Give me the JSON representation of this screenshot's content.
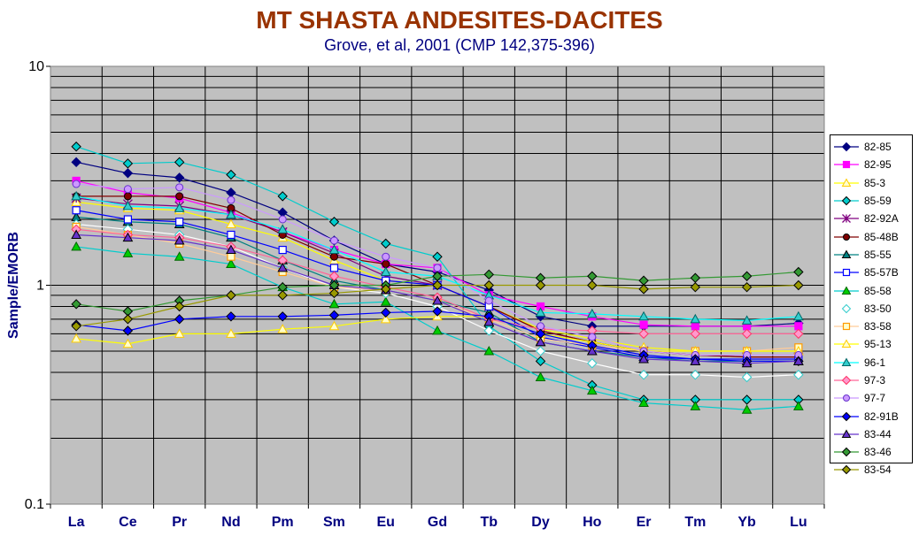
{
  "chart_data": {
    "type": "line",
    "title": "MT SHASTA ANDESITES-DACITES",
    "subtitle": "Grove, et al, 2001 (CMP 142,375-396)",
    "ylabel": "Sample/EMORB",
    "xlabel": "",
    "yscale": "log",
    "ylim": [
      0.1,
      10
    ],
    "ytick_labels": [
      "0.1",
      "1",
      "10"
    ],
    "grid": true,
    "legend_position": "right",
    "plot_background": "#c0c0c0",
    "categories": [
      "La",
      "Ce",
      "Pr",
      "Nd",
      "Pm",
      "Sm",
      "Eu",
      "Gd",
      "Tb",
      "Dy",
      "Ho",
      "Er",
      "Tm",
      "Yb",
      "Lu"
    ],
    "series": [
      {
        "name": "82-85",
        "color": "#000080",
        "marker": "diamond",
        "values": [
          3.65,
          3.25,
          3.1,
          2.65,
          2.15,
          1.6,
          1.25,
          1.15,
          0.95,
          0.72,
          0.65,
          0.65,
          0.65,
          0.65,
          0.67
        ]
      },
      {
        "name": "82-95",
        "color": "#ff00ff",
        "marker": "square",
        "values": [
          3.0,
          2.65,
          2.5,
          2.15,
          1.75,
          1.45,
          1.25,
          1.2,
          0.9,
          0.8,
          0.72,
          0.66,
          0.65,
          0.65,
          0.65
        ]
      },
      {
        "name": "85-3",
        "color": "#ffff00",
        "marker": "triangle-open",
        "values": [
          2.4,
          2.25,
          2.2,
          1.9,
          1.65,
          1.3,
          1.05,
          1.0,
          0.8,
          0.63,
          0.57,
          0.52,
          0.5,
          0.5,
          0.5
        ]
      },
      {
        "name": "85-59",
        "color": "#00cccc",
        "marker": "diamond",
        "values": [
          4.3,
          3.6,
          3.65,
          3.2,
          2.55,
          1.95,
          1.55,
          1.35,
          0.65,
          0.45,
          0.35,
          0.3,
          0.3,
          0.3,
          0.3
        ]
      },
      {
        "name": "82-92A",
        "color": "#800080",
        "marker": "star",
        "values": [
          2.5,
          2.35,
          2.3,
          2.1,
          1.75,
          1.4,
          1.1,
          1.0,
          0.8,
          0.62,
          0.55,
          0.5,
          0.48,
          0.47,
          0.47
        ]
      },
      {
        "name": "85-48B",
        "color": "#800000",
        "marker": "circle",
        "values": [
          2.55,
          2.55,
          2.55,
          2.25,
          1.7,
          1.35,
          1.25,
          1.0,
          0.8,
          0.62,
          0.55,
          0.5,
          0.48,
          0.47,
          0.47
        ]
      },
      {
        "name": "85-55",
        "color": "#008080",
        "marker": "triangle",
        "values": [
          2.05,
          1.95,
          1.9,
          1.65,
          1.3,
          1.05,
          0.95,
          0.85,
          0.75,
          0.55,
          0.5,
          0.47,
          0.45,
          0.45,
          0.45
        ]
      },
      {
        "name": "85-57B",
        "color": "#0000ff",
        "marker": "square-open",
        "values": [
          2.2,
          2.0,
          1.95,
          1.7,
          1.45,
          1.2,
          1.05,
          1.0,
          0.8,
          0.58,
          0.52,
          0.47,
          0.46,
          0.46,
          0.46
        ]
      },
      {
        "name": "85-58",
        "color": "#00cccc",
        "marker": "triangle-green",
        "values": [
          1.5,
          1.4,
          1.35,
          1.25,
          0.98,
          0.82,
          0.84,
          0.62,
          0.5,
          0.38,
          0.33,
          0.29,
          0.28,
          0.27,
          0.28
        ]
      },
      {
        "name": "83-50",
        "color": "#ffffff",
        "marker": "diamond-open",
        "values": [
          1.9,
          1.8,
          1.7,
          1.5,
          1.2,
          0.98,
          0.92,
          0.8,
          0.62,
          0.5,
          0.44,
          0.39,
          0.39,
          0.38,
          0.39
        ]
      },
      {
        "name": "83-58",
        "color": "#ffcc99",
        "marker": "square-open-orange",
        "values": [
          1.85,
          1.7,
          1.55,
          1.35,
          1.15,
          0.98,
          0.95,
          0.85,
          0.7,
          0.57,
          0.53,
          0.5,
          0.5,
          0.5,
          0.52
        ]
      },
      {
        "name": "95-13",
        "color": "#ffff00",
        "marker": "triangle-open",
        "values": [
          0.57,
          0.54,
          0.6,
          0.6,
          0.63,
          0.65,
          0.7,
          0.72,
          0.72,
          0.6,
          0.55,
          0.5,
          0.5,
          0.5,
          0.5
        ]
      },
      {
        "name": "96-1",
        "color": "#00ffff",
        "marker": "triangle-teal",
        "values": [
          2.55,
          2.3,
          2.25,
          2.1,
          1.8,
          1.45,
          1.15,
          1.1,
          0.9,
          0.75,
          0.74,
          0.72,
          0.7,
          0.69,
          0.72
        ]
      },
      {
        "name": "97-3",
        "color": "#ff6699",
        "marker": "diamond-pink",
        "values": [
          1.8,
          1.7,
          1.65,
          1.5,
          1.3,
          1.1,
          0.98,
          0.88,
          0.7,
          0.63,
          0.62,
          0.6,
          0.6,
          0.6,
          0.6
        ]
      },
      {
        "name": "97-7",
        "color": "#cc99ff",
        "marker": "circle-lavender",
        "values": [
          2.9,
          2.75,
          2.8,
          2.45,
          2.0,
          1.6,
          1.35,
          1.2,
          0.85,
          0.65,
          0.58,
          0.5,
          0.48,
          0.48,
          0.48
        ]
      },
      {
        "name": "82-91B",
        "color": "#0000ff",
        "marker": "diamond",
        "values": [
          0.66,
          0.62,
          0.7,
          0.72,
          0.72,
          0.73,
          0.75,
          0.76,
          0.72,
          0.6,
          0.53,
          0.48,
          0.46,
          0.45,
          0.45
        ]
      },
      {
        "name": "83-44",
        "color": "#6633cc",
        "marker": "triangle",
        "values": [
          1.7,
          1.65,
          1.6,
          1.45,
          1.2,
          1.0,
          0.95,
          0.85,
          0.68,
          0.55,
          0.5,
          0.46,
          0.45,
          0.44,
          0.45
        ]
      },
      {
        "name": "83-46",
        "color": "#339933",
        "marker": "diamond",
        "values": [
          0.82,
          0.76,
          0.85,
          0.9,
          0.98,
          1.0,
          1.0,
          1.1,
          1.12,
          1.08,
          1.1,
          1.05,
          1.08,
          1.1,
          1.15
        ]
      },
      {
        "name": "83-54",
        "color": "#999900",
        "marker": "diamond",
        "values": [
          0.65,
          0.7,
          0.8,
          0.9,
          0.9,
          0.92,
          0.96,
          1.0,
          1.0,
          1.0,
          1.0,
          0.96,
          0.98,
          0.98,
          1.0
        ]
      }
    ]
  }
}
